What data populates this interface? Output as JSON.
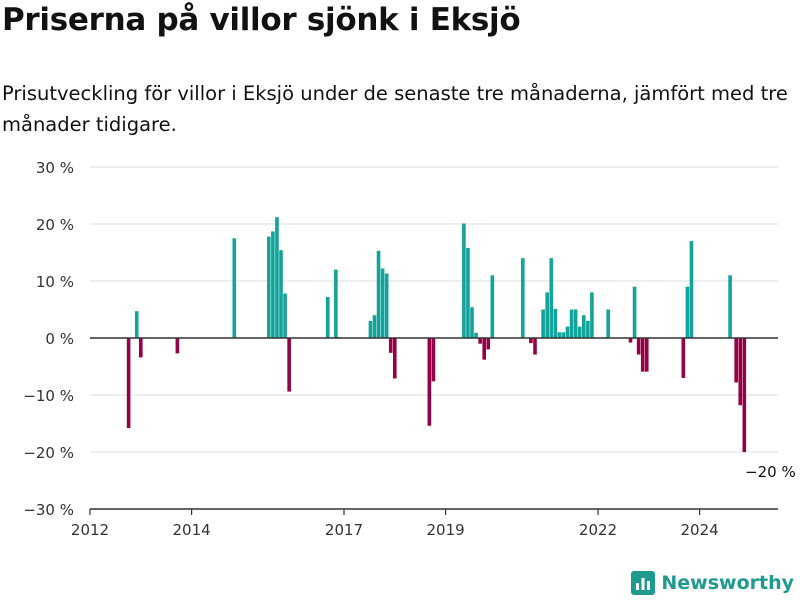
{
  "title": "Priserna på villor sjönk i Eksjö",
  "subtitle": "Prisutveckling för villor i Eksjö under de senaste tre månaderna, jämfört med tre månader tidigare.",
  "brand": {
    "name": "Newsworthy",
    "icon": "bar-chart-logo-icon"
  },
  "colors": {
    "positive": "#13a39a",
    "negative": "#960045",
    "grid": "#dddddd",
    "axis": "#333333"
  },
  "chart_data": {
    "type": "bar",
    "ylim": [
      -30,
      30
    ],
    "yticks": [
      {
        "value": 30,
        "label": "30 %"
      },
      {
        "value": 20,
        "label": "20 %"
      },
      {
        "value": 10,
        "label": "10 %"
      },
      {
        "value": 0,
        "label": "0 %"
      },
      {
        "value": -10,
        "label": "−10 %"
      },
      {
        "value": -20,
        "label": "−20 %"
      },
      {
        "value": -30,
        "label": "−30 %"
      }
    ],
    "xlim": [
      2012.0,
      2025.8
    ],
    "xticks": [
      {
        "value": 2012,
        "label": "2012"
      },
      {
        "value": 2014,
        "label": "2014"
      },
      {
        "value": 2017,
        "label": "2017"
      },
      {
        "value": 2019,
        "label": "2019"
      },
      {
        "value": 2022,
        "label": "2022"
      },
      {
        "value": 2024,
        "label": "2024"
      }
    ],
    "annotation": {
      "text": "−20 %",
      "x": 2025.0,
      "y": -20
    },
    "bars": [
      {
        "x": 2012.76,
        "y": -15.8
      },
      {
        "x": 2012.92,
        "y": 4.7
      },
      {
        "x": 2013.0,
        "y": -3.4
      },
      {
        "x": 2013.72,
        "y": -2.7
      },
      {
        "x": 2014.84,
        "y": 17.5
      },
      {
        "x": 2015.52,
        "y": 17.8
      },
      {
        "x": 2015.6,
        "y": 18.7
      },
      {
        "x": 2015.68,
        "y": 21.2
      },
      {
        "x": 2015.76,
        "y": 15.4
      },
      {
        "x": 2015.84,
        "y": 7.8
      },
      {
        "x": 2015.92,
        "y": -9.4
      },
      {
        "x": 2016.68,
        "y": 7.2
      },
      {
        "x": 2016.84,
        "y": 12.0
      },
      {
        "x": 2017.52,
        "y": 3.0
      },
      {
        "x": 2017.6,
        "y": 4.0
      },
      {
        "x": 2017.68,
        "y": 15.3
      },
      {
        "x": 2017.76,
        "y": 12.2
      },
      {
        "x": 2017.84,
        "y": 11.3
      },
      {
        "x": 2017.92,
        "y": -2.6
      },
      {
        "x": 2018.0,
        "y": -7.1
      },
      {
        "x": 2018.68,
        "y": -15.4
      },
      {
        "x": 2018.76,
        "y": -7.6
      },
      {
        "x": 2019.36,
        "y": 20.1
      },
      {
        "x": 2019.44,
        "y": 15.8
      },
      {
        "x": 2019.52,
        "y": 5.4
      },
      {
        "x": 2019.6,
        "y": 0.9
      },
      {
        "x": 2019.68,
        "y": -1.0
      },
      {
        "x": 2019.76,
        "y": -3.8
      },
      {
        "x": 2019.84,
        "y": -2.0
      },
      {
        "x": 2019.92,
        "y": 11.0
      },
      {
        "x": 2020.52,
        "y": 14.0
      },
      {
        "x": 2020.68,
        "y": -0.9
      },
      {
        "x": 2020.76,
        "y": -2.9
      },
      {
        "x": 2020.92,
        "y": 5.0
      },
      {
        "x": 2021.0,
        "y": 8.0
      },
      {
        "x": 2021.08,
        "y": 14.0
      },
      {
        "x": 2021.16,
        "y": 5.1
      },
      {
        "x": 2021.24,
        "y": 1.0
      },
      {
        "x": 2021.32,
        "y": 1.0
      },
      {
        "x": 2021.4,
        "y": 2.0
      },
      {
        "x": 2021.48,
        "y": 5.0
      },
      {
        "x": 2021.56,
        "y": 5.0
      },
      {
        "x": 2021.64,
        "y": 2.0
      },
      {
        "x": 2021.72,
        "y": 4.0
      },
      {
        "x": 2021.8,
        "y": 3.0
      },
      {
        "x": 2021.88,
        "y": 8.0
      },
      {
        "x": 2022.2,
        "y": 5.0
      },
      {
        "x": 2022.64,
        "y": -0.8
      },
      {
        "x": 2022.72,
        "y": 9.0
      },
      {
        "x": 2022.8,
        "y": -2.9
      },
      {
        "x": 2022.88,
        "y": -5.9
      },
      {
        "x": 2022.96,
        "y": -5.9
      },
      {
        "x": 2023.68,
        "y": -7.0
      },
      {
        "x": 2023.76,
        "y": 9.0
      },
      {
        "x": 2023.84,
        "y": 17.0
      },
      {
        "x": 2024.6,
        "y": 11.0
      },
      {
        "x": 2024.72,
        "y": -7.8
      },
      {
        "x": 2024.8,
        "y": -11.8
      },
      {
        "x": 2024.88,
        "y": -20.0
      }
    ]
  }
}
